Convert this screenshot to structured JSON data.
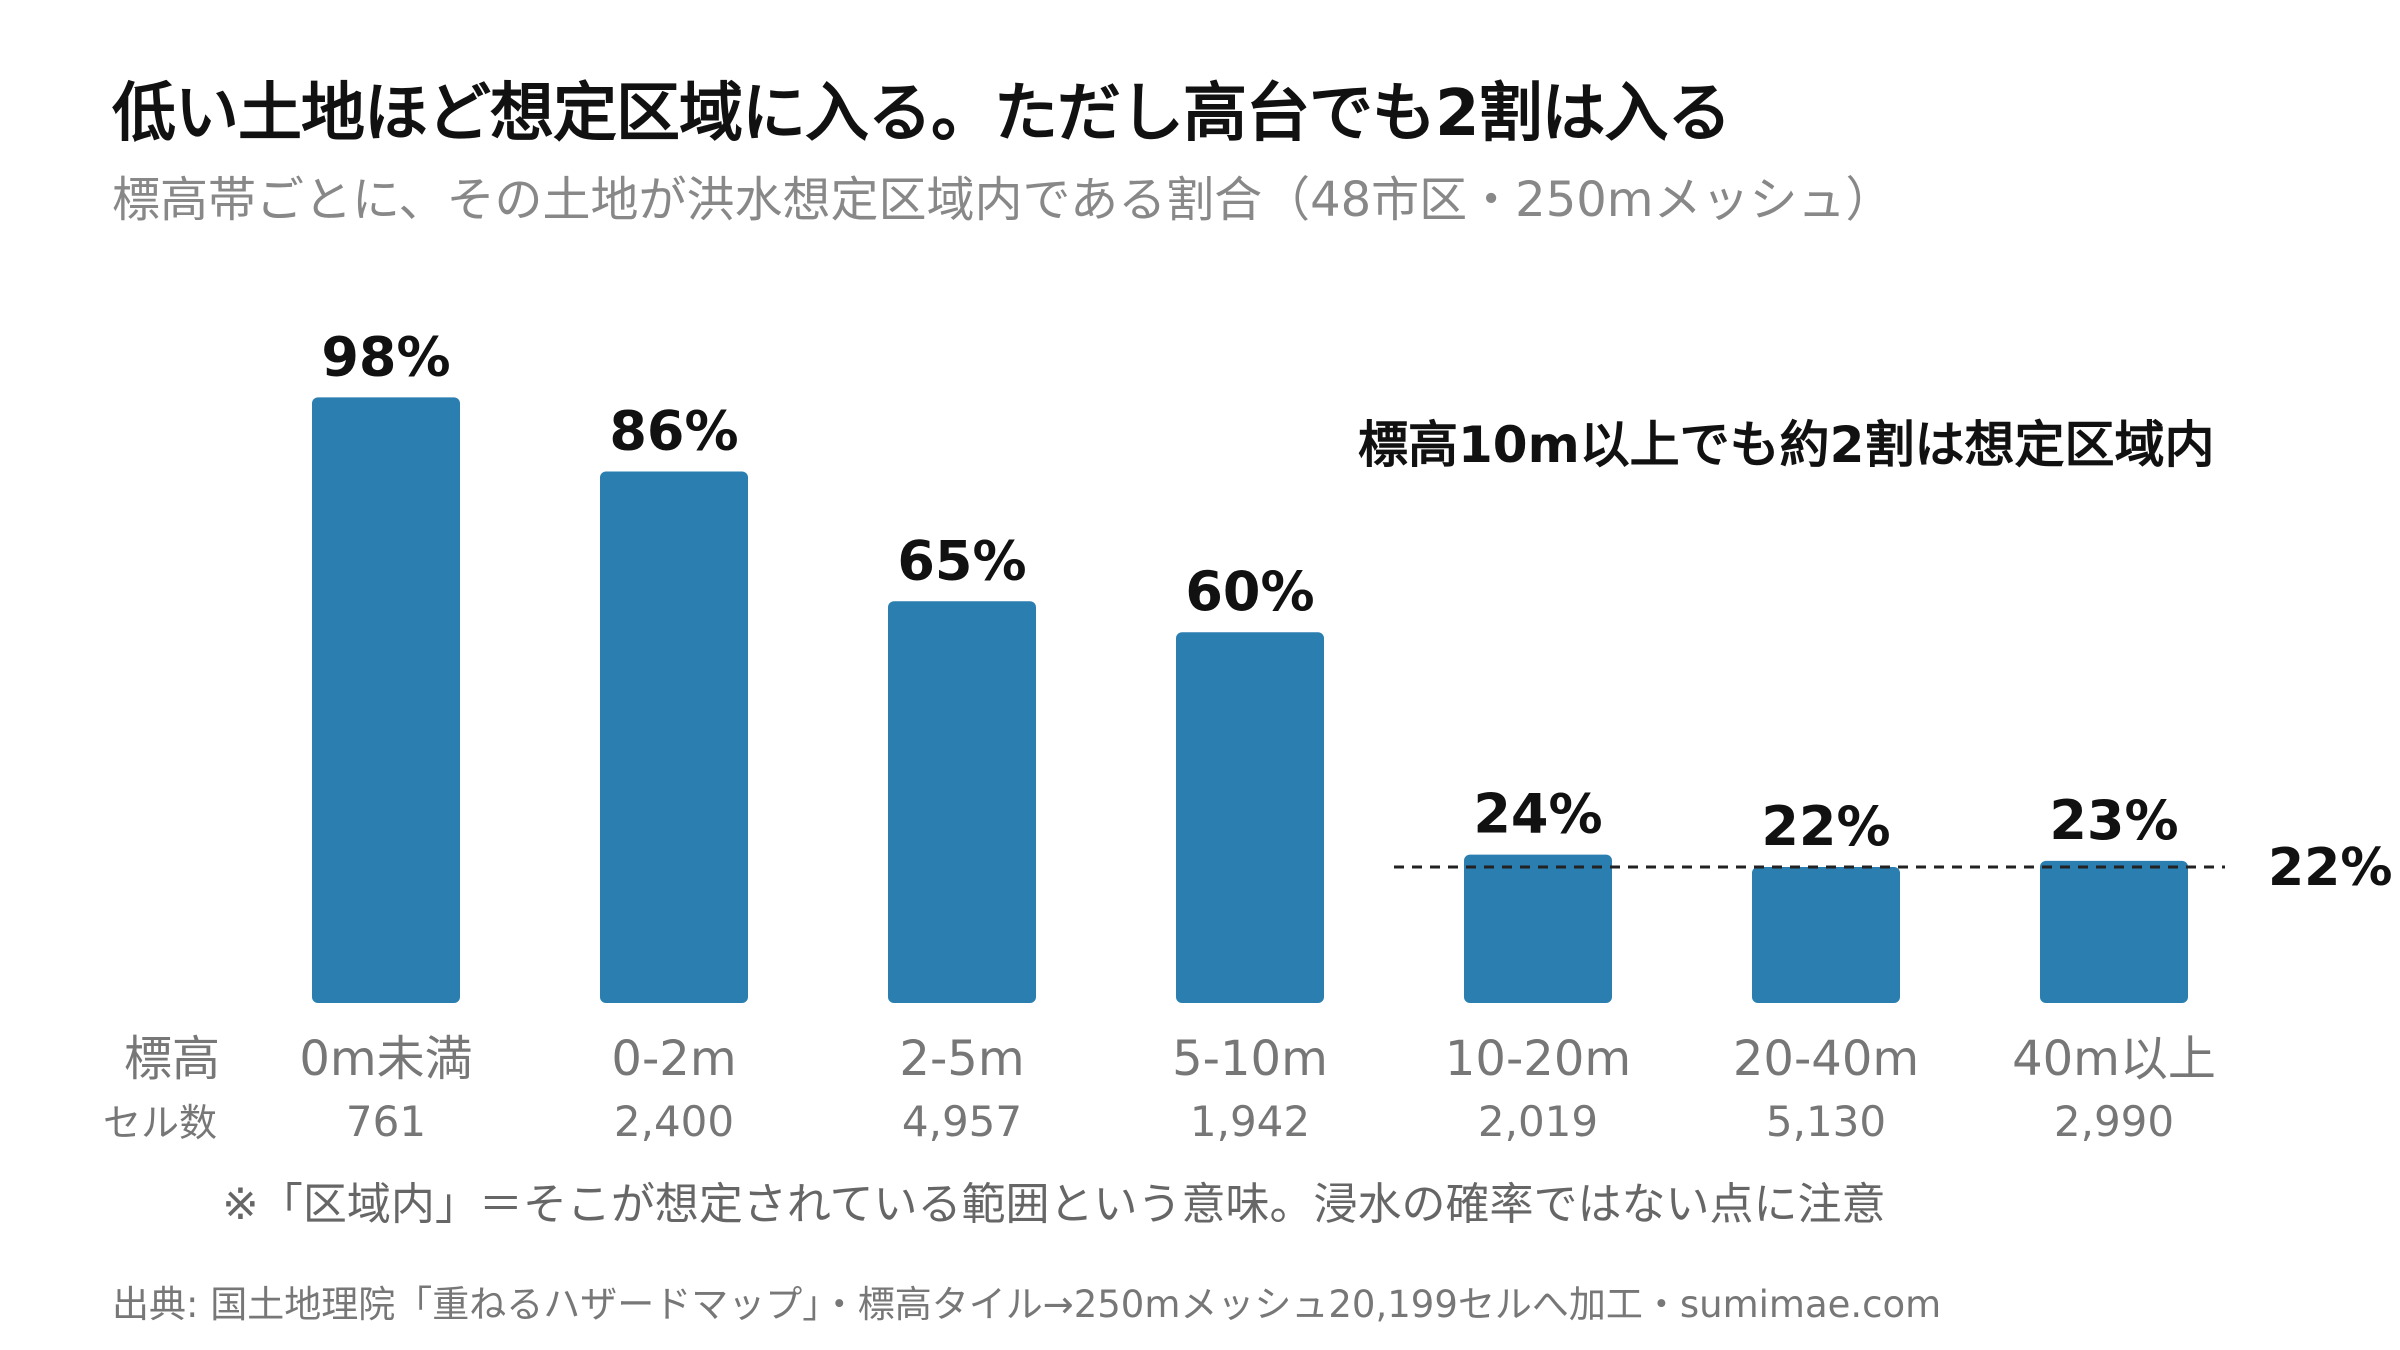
{
  "title": "低い土地ほど想定区域に入る。ただし高台でも2割は入る",
  "subtitle": "標高帯ごとに、その土地が洪水想定区域内である割合（48市区・250mメッシュ）",
  "chart_data": {
    "type": "bar",
    "categories": [
      "0m未満",
      "0-2m",
      "2-5m",
      "5-10m",
      "10-20m",
      "20-40m",
      "40m以上"
    ],
    "values": [
      98,
      86,
      65,
      60,
      24,
      22,
      23
    ],
    "value_labels": [
      "98%",
      "86%",
      "65%",
      "60%",
      "24%",
      "22%",
      "23%"
    ],
    "cell_counts": [
      "761",
      "2,400",
      "4,957",
      "1,942",
      "2,019",
      "5,130",
      "2,990"
    ],
    "row_labels": {
      "elevation": "標高",
      "cells": "セル数"
    },
    "ylim": [
      0,
      100
    ],
    "grid": false,
    "bar_color": "#2a7fb0",
    "reference_line": {
      "value": 22,
      "label": "22%",
      "style": "dashed",
      "from_category_index": 4
    },
    "annotation": "標高10m以上でも約2割は想定区域内"
  },
  "note": "※「区域内」＝そこが想定されている範囲という意味。浸水の確率ではない点に注意",
  "source": "出典: 国土地理院「重ねるハザードマップ」・標高タイル→250mメッシュ20,199セルへ加工・sumimae.com"
}
